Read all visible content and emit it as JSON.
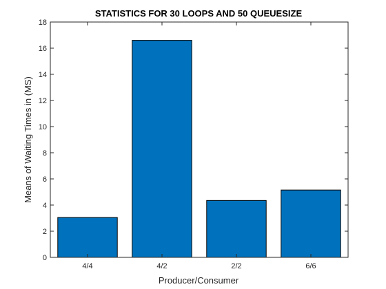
{
  "chart_data": {
    "type": "bar",
    "title": "STATISTICS FOR 30 LOOPS AND 50 QUEUESIZE",
    "xlabel": "Producer/Consumer",
    "ylabel": "Means of Waiting Times in (MS)",
    "categories": [
      "4/4",
      "4/2",
      "2/2",
      "6/6"
    ],
    "values": [
      3.05,
      16.6,
      4.35,
      5.15
    ],
    "ylim": [
      0,
      18
    ],
    "yticks": [
      "0",
      "2",
      "4",
      "6",
      "8",
      "10",
      "12",
      "14",
      "16",
      "18"
    ],
    "grid": false,
    "legend": "none",
    "bar_color": "#0072BD",
    "bar_edge_color": "#000000"
  }
}
